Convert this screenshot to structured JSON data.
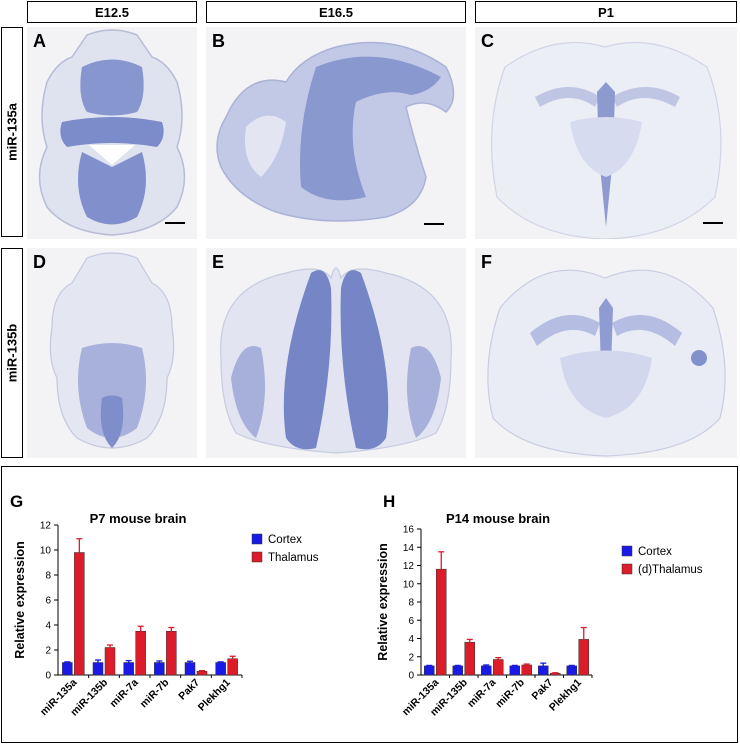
{
  "column_headers": [
    "E12.5",
    "E16.5",
    "P1"
  ],
  "row_headers": [
    "miR-135a",
    "miR-135b"
  ],
  "panel_letters": [
    "A",
    "B",
    "C",
    "D",
    "E",
    "F"
  ],
  "colors": {
    "cortex": "#1a1ae6",
    "thalamus": "#dd1c2a",
    "stain": "#6a7ec8"
  },
  "chart_data": [
    {
      "type": "bar",
      "panel_letter": "G",
      "title": "P7 mouse brain",
      "ylabel": "Relative expression",
      "xlabel": "",
      "ylim": [
        0,
        12
      ],
      "yticks": [
        0,
        2,
        4,
        6,
        8,
        10,
        12
      ],
      "categories": [
        "miR-135a",
        "miR-135b",
        "miR-7a",
        "miR-7b",
        "Pak7",
        "Plekhg1"
      ],
      "legend_position": "right",
      "series": [
        {
          "name": "Cortex",
          "color": "#1a1ae6",
          "values": [
            1.0,
            1.0,
            1.0,
            1.0,
            1.0,
            1.0
          ],
          "errors": [
            0.05,
            0.2,
            0.15,
            0.12,
            0.1,
            0.05
          ]
        },
        {
          "name": "Thalamus",
          "color": "#dd1c2a",
          "values": [
            9.8,
            2.2,
            3.5,
            3.5,
            0.3,
            1.3
          ],
          "errors": [
            1.1,
            0.2,
            0.4,
            0.3,
            0.05,
            0.2
          ]
        }
      ]
    },
    {
      "type": "bar",
      "panel_letter": "H",
      "title": "P14 mouse brain",
      "ylabel": "Relative expression",
      "xlabel": "",
      "ylim": [
        0,
        16
      ],
      "yticks": [
        0,
        2,
        4,
        6,
        8,
        10,
        12,
        14,
        16
      ],
      "categories": [
        "miR-135a",
        "miR-135b",
        "miR-7a",
        "miR-7b",
        "Pak7",
        "Plekhg1"
      ],
      "legend_position": "right",
      "series": [
        {
          "name": "Cortex",
          "color": "#1a1ae6",
          "values": [
            1.0,
            1.0,
            1.0,
            1.0,
            1.0,
            1.0
          ],
          "errors": [
            0.05,
            0.05,
            0.1,
            0.05,
            0.3,
            0.05
          ]
        },
        {
          "name": "(d)Thalamus",
          "color": "#dd1c2a",
          "values": [
            11.6,
            3.6,
            1.7,
            1.1,
            0.2,
            3.9
          ],
          "errors": [
            1.9,
            0.3,
            0.2,
            0.1,
            0.05,
            1.3
          ]
        }
      ]
    }
  ]
}
